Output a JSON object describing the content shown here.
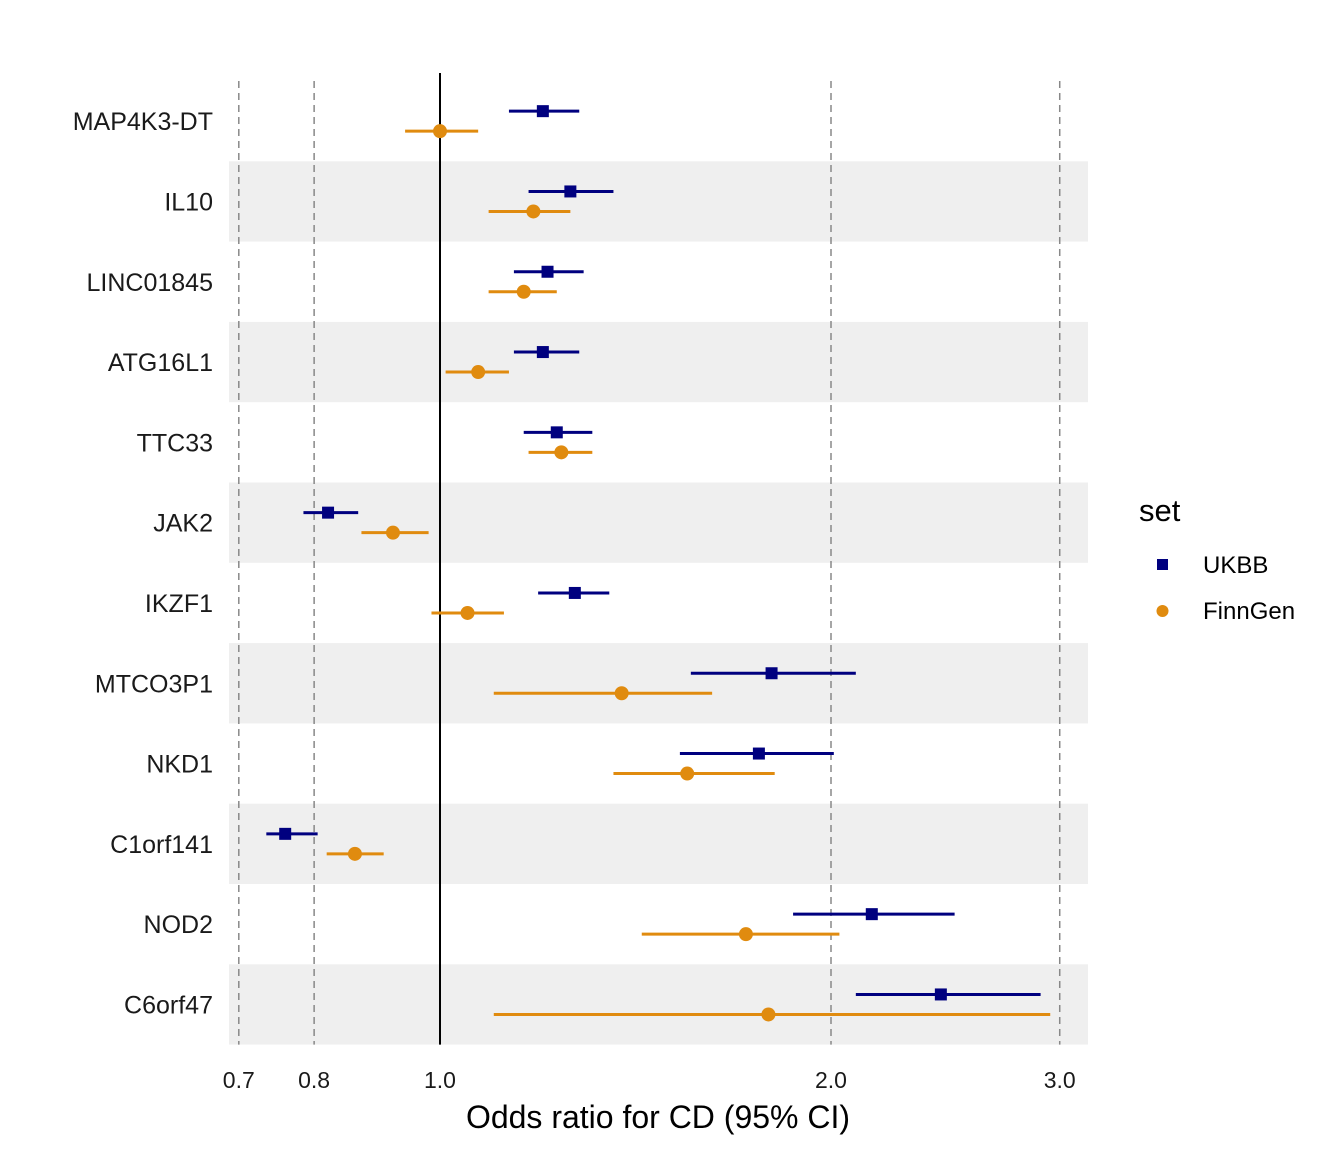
{
  "chart_data": {
    "type": "forest",
    "xlabel": "Odds ratio for CD (95% CI)",
    "xscale": "log",
    "xlim": [
      0.69,
      3.1
    ],
    "xticks": [
      0.7,
      0.8,
      1.0,
      2.0,
      3.0
    ],
    "xtick_labels": [
      "0.7",
      "0.8",
      "1.0",
      "2.0",
      "3.0"
    ],
    "reference_line": 1.0,
    "gridlines": "dashed at x ticks",
    "legend": {
      "title": "set",
      "placement": "right"
    },
    "colors": {
      "UKBB": "#00007f",
      "FinnGen": "#e08b0f",
      "band": "#efefef",
      "ref_line": "#000000",
      "grid": "#888888"
    },
    "categories": [
      "MAP4K3-DT",
      "IL10",
      "LINC01845",
      "ATG16L1",
      "TTC33",
      "JAK2",
      "IKZF1",
      "MTCO3P1",
      "NKD1",
      "C1orf141",
      "NOD2",
      "C6orf47"
    ],
    "series": [
      {
        "name": "UKBB",
        "marker": "square",
        "or": [
          1.2,
          1.26,
          1.21,
          1.2,
          1.23,
          0.82,
          1.27,
          1.8,
          1.76,
          0.76,
          2.15,
          2.43
        ],
        "lower": [
          1.13,
          1.17,
          1.14,
          1.14,
          1.16,
          0.785,
          1.19,
          1.56,
          1.53,
          0.735,
          1.87,
          2.09
        ],
        "upper": [
          1.28,
          1.36,
          1.29,
          1.28,
          1.31,
          0.865,
          1.35,
          2.09,
          2.01,
          0.805,
          2.49,
          2.9
        ]
      },
      {
        "name": "FinnGen",
        "marker": "circle",
        "or": [
          1.0,
          1.18,
          1.16,
          1.07,
          1.24,
          0.92,
          1.05,
          1.38,
          1.55,
          0.86,
          1.72,
          1.79
        ],
        "lower": [
          0.94,
          1.09,
          1.09,
          1.01,
          1.17,
          0.87,
          0.985,
          1.1,
          1.36,
          0.818,
          1.43,
          1.1
        ],
        "upper": [
          1.07,
          1.26,
          1.23,
          1.13,
          1.31,
          0.98,
          1.12,
          1.62,
          1.81,
          0.905,
          2.03,
          2.95
        ]
      }
    ]
  }
}
